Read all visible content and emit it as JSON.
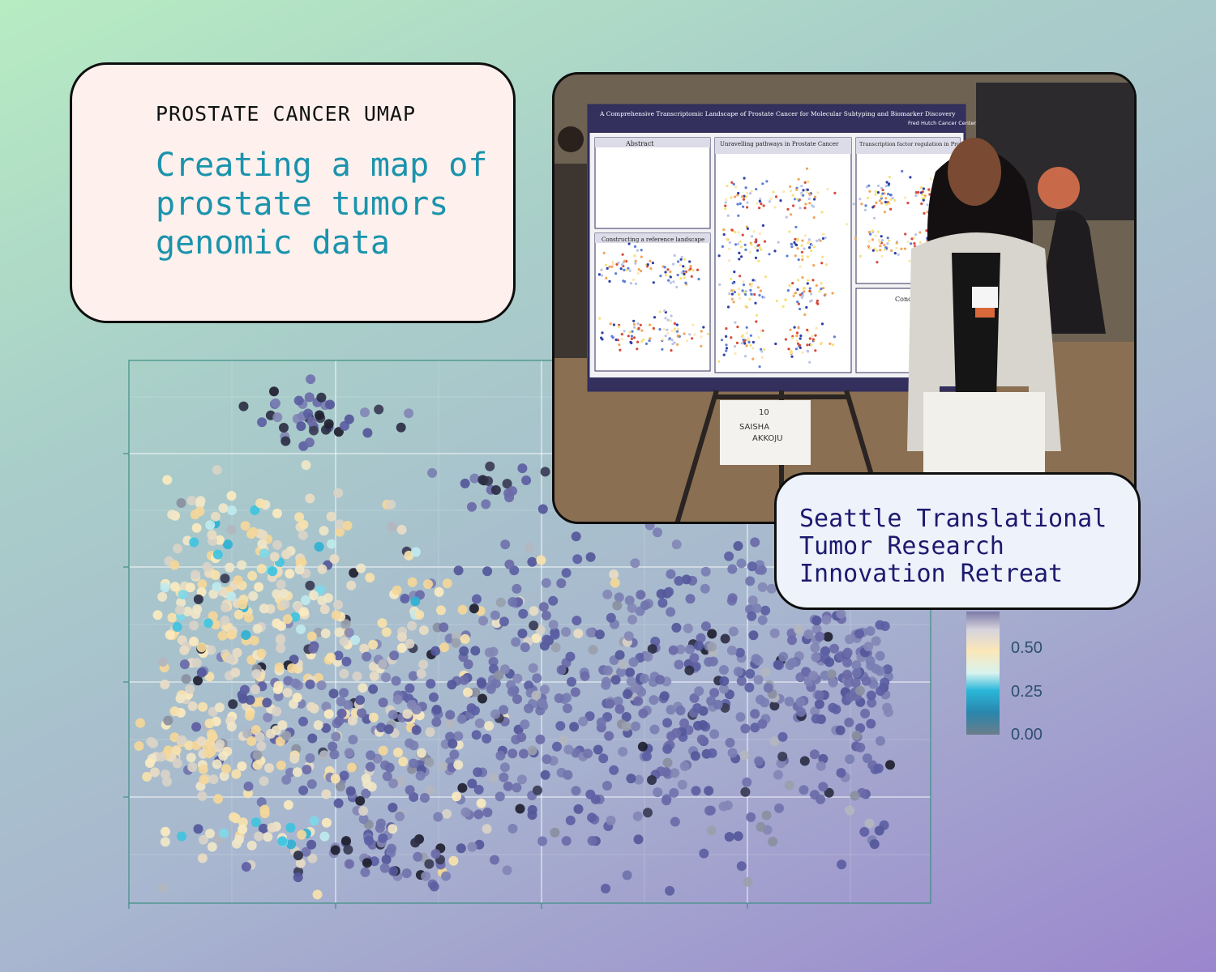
{
  "title_card": {
    "eyebrow": "PROSTATE CANCER UMAP",
    "headline": "Creating a map of prostate tumors genomic data"
  },
  "callout": {
    "text": "Seattle Translational Tumor Research Innovation Retreat"
  },
  "colorbar": {
    "ticks": [
      "0.50",
      "0.25",
      "0.00"
    ]
  },
  "poster": {
    "title": "A Comprehensive Transcriptomic Landscape of Prostate Cancer for Molecular Subtyping and Biomarker Discovery",
    "affiliation": "Fred Hutch Cancer Center",
    "sections": [
      "Abstract",
      "Unravelling pathways in Prostate Cancer",
      "Transcription factor regulation in Prostate cancer",
      "Constructing a reference landscape",
      "Conclu"
    ],
    "easel_sign_number": "10",
    "easel_sign_name_1": "SAISHA",
    "easel_sign_name_2": "AKKOJU"
  },
  "colors": {
    "headline": "#1b93ac",
    "callout_text": "#1c1a6e",
    "card_bg": "#fdf0ed",
    "plot_frame": "#3e8f84"
  }
}
